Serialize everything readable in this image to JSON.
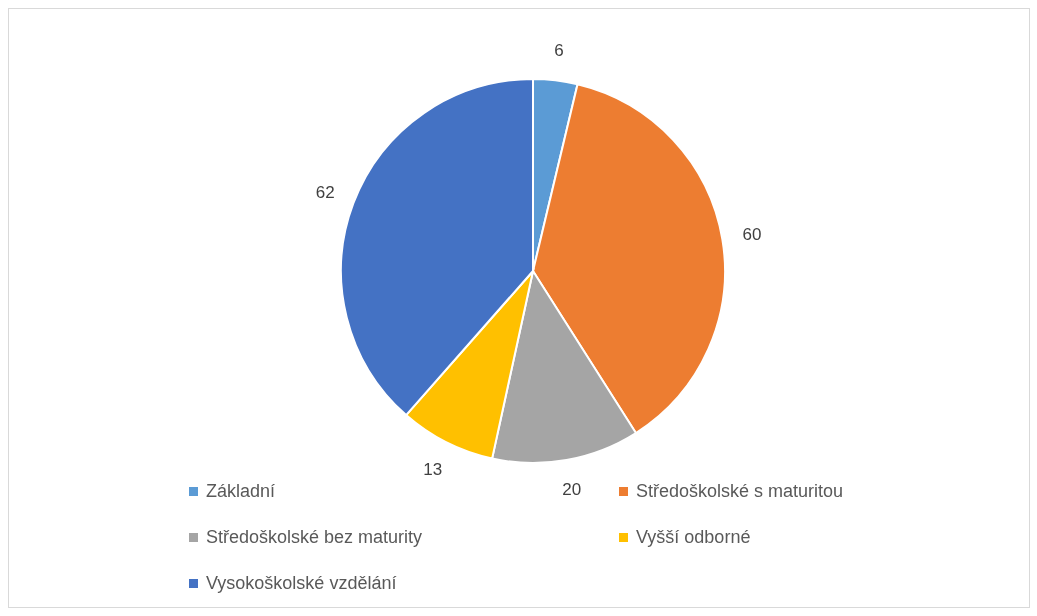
{
  "chart_data": {
    "type": "pie",
    "categories": [
      "Základní",
      "Středoškolské s maturitou",
      "Středoškolské bez maturity",
      "Vyšší odborné",
      "Vysokoškolské vzdělání"
    ],
    "values": [
      6,
      60,
      20,
      13,
      62
    ],
    "colors": [
      "#5b9bd5",
      "#ed7d31",
      "#a5a5a5",
      "#ffc000",
      "#4472c4"
    ],
    "data_labels": true,
    "legend": "bottom"
  }
}
